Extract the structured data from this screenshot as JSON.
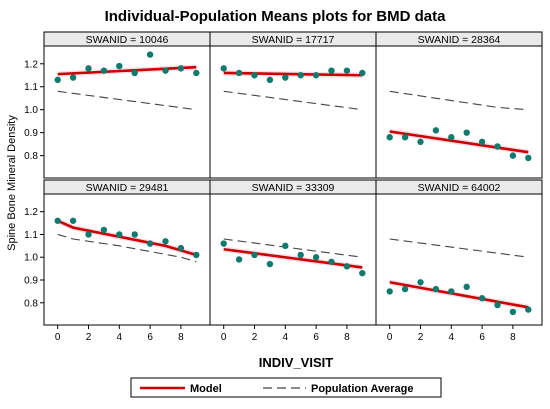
{
  "chart_data": {
    "type": "scatter",
    "title": "Individual-Population Means plots for BMD data",
    "xlabel": "INDIV_VISIT",
    "ylabel": "Spine Bone Mineral Density",
    "xlim": [
      -0.5,
      9.5
    ],
    "ylim": [
      0.72,
      1.26
    ],
    "xticks": [
      0,
      2,
      4,
      6,
      8
    ],
    "yticks": [
      0.8,
      0.9,
      1.0,
      1.1,
      1.2
    ],
    "grid": false,
    "legend_position": "bottom",
    "legend": [
      {
        "label": "Model",
        "style": "solid",
        "color": "#cc0000"
      },
      {
        "label": "Population Average",
        "style": "dashed",
        "color": "#444444"
      }
    ],
    "colors": {
      "points": "#117a6e",
      "model": "#cc0000",
      "population": "#444444",
      "panel_header": "#eaeaea",
      "confidence_band": "#f9dce6"
    },
    "panels": [
      {
        "label": "SWANID = 10046",
        "points": [
          [
            0,
            1.13
          ],
          [
            1,
            1.14
          ],
          [
            2,
            1.18
          ],
          [
            3,
            1.17
          ],
          [
            4,
            1.19
          ],
          [
            5,
            1.16
          ],
          [
            6,
            1.24
          ],
          [
            7,
            1.17
          ],
          [
            8,
            1.18
          ],
          [
            9,
            1.16
          ]
        ],
        "model": [
          [
            0,
            1.155
          ],
          [
            9,
            1.185
          ]
        ],
        "population": [
          [
            0,
            1.08
          ],
          [
            9,
            1.0
          ]
        ]
      },
      {
        "label": "SWANID = 17717",
        "points": [
          [
            0,
            1.18
          ],
          [
            1,
            1.16
          ],
          [
            2,
            1.15
          ],
          [
            3,
            1.13
          ],
          [
            4,
            1.14
          ],
          [
            5,
            1.15
          ],
          [
            6,
            1.15
          ],
          [
            7,
            1.17
          ],
          [
            8,
            1.17
          ],
          [
            9,
            1.16
          ]
        ],
        "model": [
          [
            0,
            1.16
          ],
          [
            9,
            1.15
          ]
        ],
        "population": [
          [
            0,
            1.08
          ],
          [
            9,
            1.0
          ]
        ]
      },
      {
        "label": "SWANID = 28364",
        "points": [
          [
            0,
            0.88
          ],
          [
            1,
            0.88
          ],
          [
            2,
            0.86
          ],
          [
            3,
            0.91
          ],
          [
            4,
            0.88
          ],
          [
            5,
            0.9
          ],
          [
            6,
            0.86
          ],
          [
            7,
            0.84
          ],
          [
            8,
            0.8
          ],
          [
            9,
            0.79
          ]
        ],
        "model": [
          [
            0,
            0.905
          ],
          [
            9,
            0.815
          ]
        ],
        "population": [
          [
            0,
            1.08
          ],
          [
            7,
            1.01
          ],
          [
            9,
            1.0
          ]
        ]
      },
      {
        "label": "SWANID = 29481",
        "points": [
          [
            0,
            1.16
          ],
          [
            1,
            1.16
          ],
          [
            2,
            1.1
          ],
          [
            3,
            1.12
          ],
          [
            4,
            1.1
          ],
          [
            5,
            1.1
          ],
          [
            6,
            1.06
          ],
          [
            7,
            1.07
          ],
          [
            8,
            1.04
          ],
          [
            9,
            1.01
          ]
        ],
        "model": [
          [
            0,
            1.16
          ],
          [
            1,
            1.13
          ],
          [
            4,
            1.09
          ],
          [
            7,
            1.05
          ],
          [
            9,
            1.01
          ]
        ],
        "population": [
          [
            0,
            1.1
          ],
          [
            1,
            1.08
          ],
          [
            4,
            1.05
          ],
          [
            8,
            1.0
          ],
          [
            9,
            0.98
          ]
        ]
      },
      {
        "label": "SWANID = 33309",
        "points": [
          [
            0,
            1.06
          ],
          [
            1,
            0.99
          ],
          [
            2,
            1.01
          ],
          [
            3,
            0.97
          ],
          [
            4,
            1.05
          ],
          [
            5,
            1.01
          ],
          [
            6,
            1.0
          ],
          [
            7,
            0.98
          ],
          [
            8,
            0.96
          ],
          [
            9,
            0.93
          ]
        ],
        "model": [
          [
            0,
            1.035
          ],
          [
            9,
            0.955
          ]
        ],
        "population": [
          [
            0,
            1.08
          ],
          [
            9,
            1.0
          ]
        ]
      },
      {
        "label": "SWANID = 64002",
        "points": [
          [
            0,
            0.85
          ],
          [
            1,
            0.86
          ],
          [
            2,
            0.89
          ],
          [
            3,
            0.86
          ],
          [
            4,
            0.85
          ],
          [
            5,
            0.87
          ],
          [
            6,
            0.82
          ],
          [
            7,
            0.79
          ],
          [
            8,
            0.76
          ],
          [
            9,
            0.77
          ]
        ],
        "model": [
          [
            0,
            0.89
          ],
          [
            9,
            0.78
          ]
        ],
        "population": [
          [
            0,
            1.08
          ],
          [
            9,
            1.0
          ]
        ]
      }
    ]
  }
}
